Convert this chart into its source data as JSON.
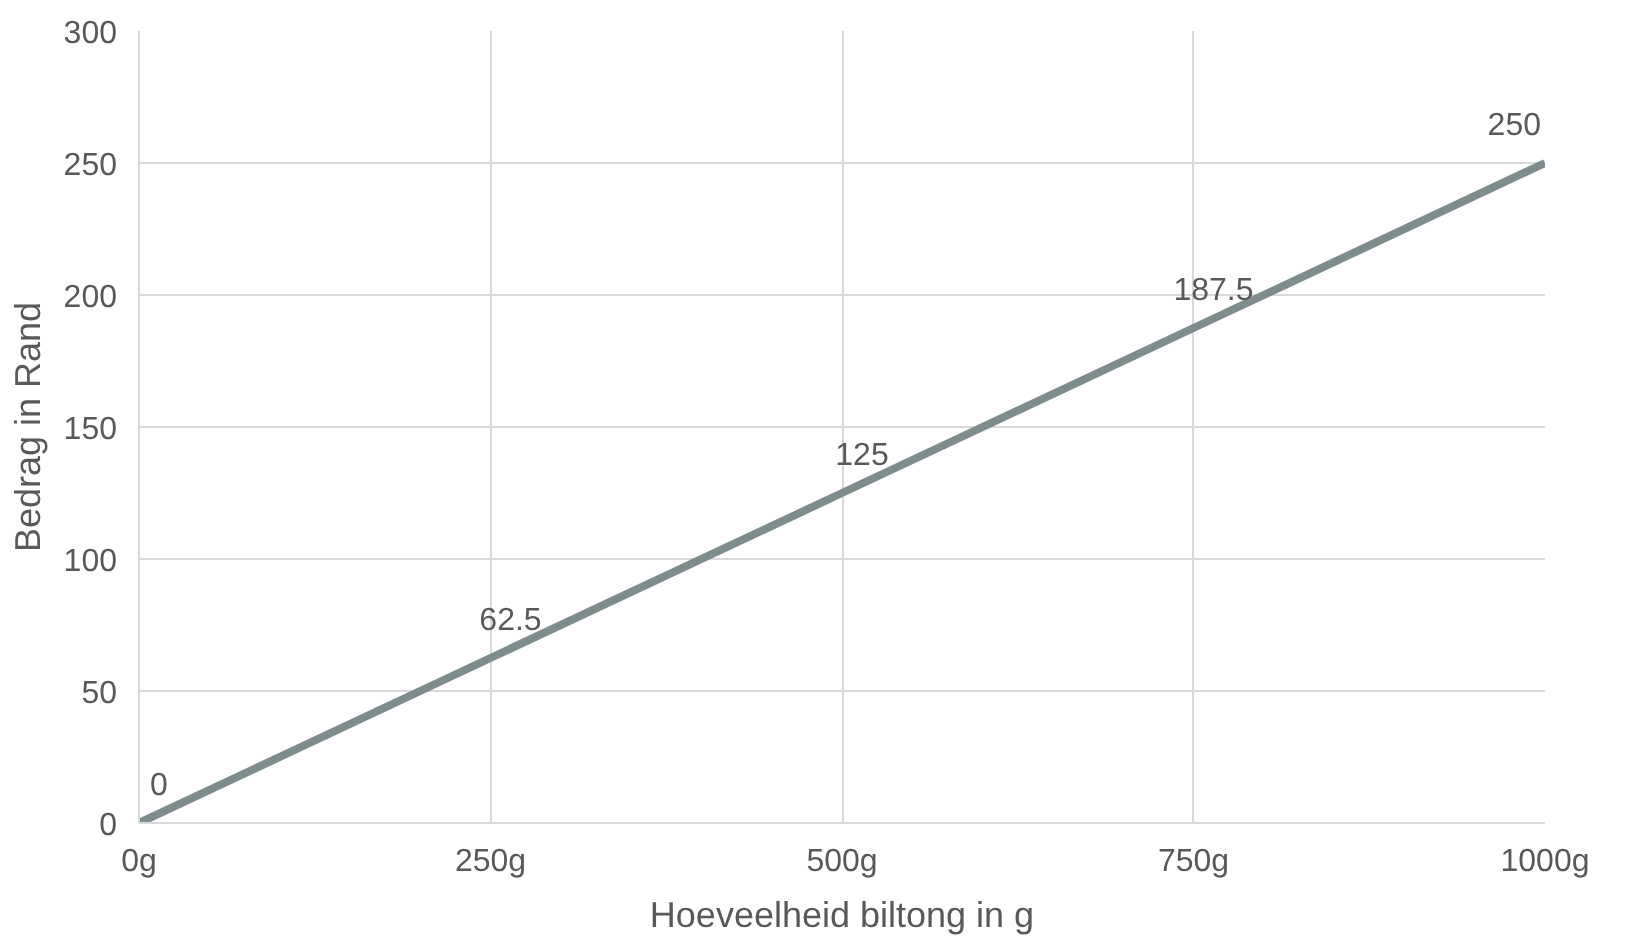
{
  "chart_data": {
    "type": "line",
    "xlabel": "Hoeveelheid biltong in g",
    "ylabel": "Bedrag in Rand",
    "categories": [
      "0g",
      "250g",
      "500g",
      "750g",
      "1000g"
    ],
    "series": [
      {
        "color": "#7f8c8d",
        "values": [
          0,
          62.5,
          125,
          187.5,
          250
        ]
      }
    ],
    "ylim": [
      0,
      300
    ],
    "yticks": [
      0,
      50,
      100,
      150,
      200,
      250,
      300
    ],
    "grid": true,
    "data_labels": true,
    "marker": "none",
    "line_style": "solid"
  }
}
